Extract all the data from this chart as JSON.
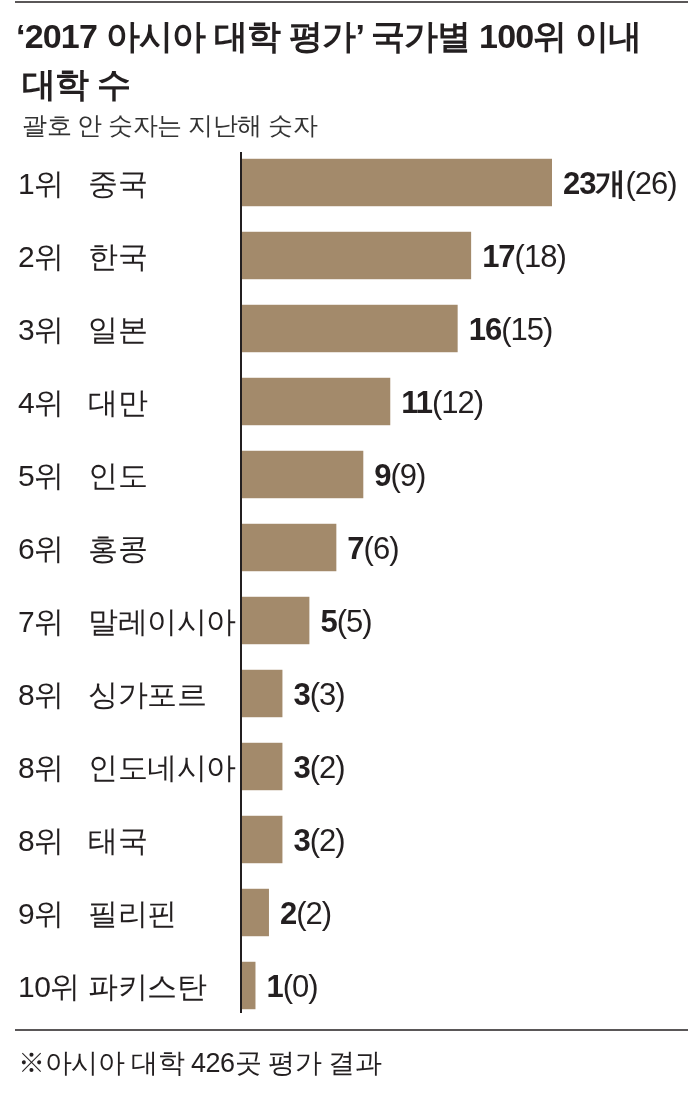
{
  "chart_data": {
    "type": "bar",
    "orientation": "horizontal",
    "title": "‘2017 아시아 대학 평가’ 국가별 100위 이내 대학 수",
    "subtitle": "괄호 안 숫자는 지난해 숫자",
    "categories": [
      "1위 중국",
      "2위 한국",
      "3위 일본",
      "4위 대만",
      "5위 인도",
      "6위 홍콩",
      "7위 말레이시아",
      "8위 싱가포르",
      "8위 인도네시아",
      "8위 태국",
      "9위 필리핀",
      "10위 파키스탄"
    ],
    "values": [
      23,
      17,
      16,
      11,
      9,
      7,
      5,
      3,
      3,
      3,
      2,
      1
    ],
    "value_labels": [
      "23개(26)",
      "17(18)",
      "16(15)",
      "11(12)",
      "9(9)",
      "7(6)",
      "5(5)",
      "3(3)",
      "3(2)",
      "3(2)",
      "2(2)",
      "1(0)"
    ],
    "color": "#a38a6b",
    "tick_labels": "y",
    "annotations": [
      "※아시아 대학 426곳 평가 결과"
    ]
  }
}
